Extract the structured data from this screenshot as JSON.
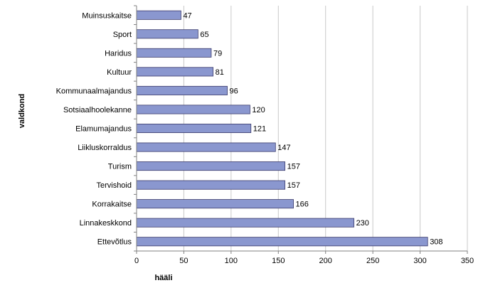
{
  "chart_data": {
    "type": "bar",
    "orientation": "horizontal",
    "categories": [
      "Muinsuskaitse",
      "Sport",
      "Haridus",
      "Kultuur",
      "Kommunaalmajandus",
      "Sotsiaalhoolekanne",
      "Elamumajandus",
      "Liikluskorraldus",
      "Turism",
      "Tervishoid",
      "Korrakaitse",
      "Linnakeskkond",
      "Ettevõtlus"
    ],
    "values": [
      47,
      65,
      79,
      81,
      96,
      120,
      121,
      147,
      157,
      157,
      166,
      230,
      308
    ],
    "xlabel": "hääli",
    "ylabel": "valdkond",
    "xlim": [
      0,
      350
    ],
    "xticks": [
      0,
      50,
      100,
      150,
      200,
      250,
      300,
      350
    ],
    "grid": "vertical",
    "legend": "none",
    "bar_color": "#8a97cf",
    "bar_edge_color": "#3b3b6b"
  }
}
